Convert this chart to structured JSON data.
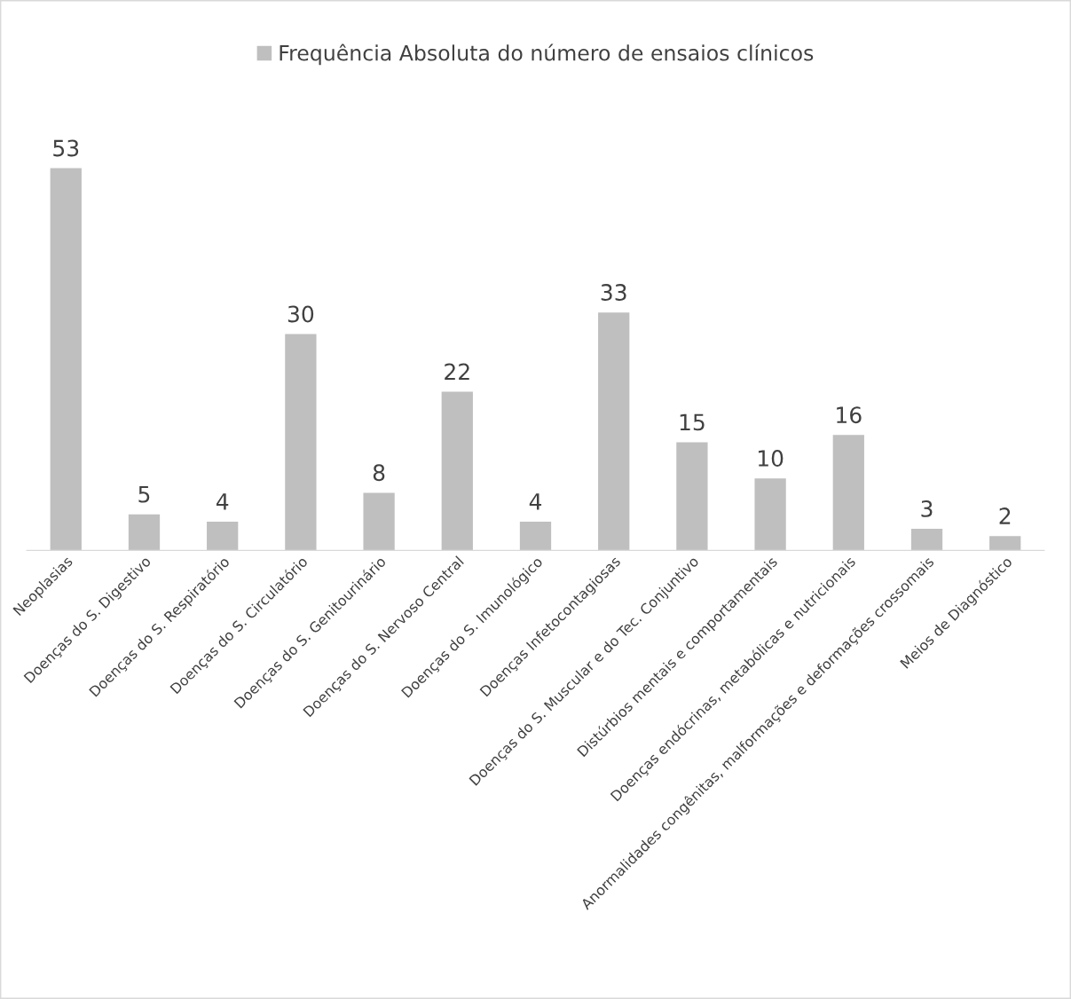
{
  "chart_data": {
    "type": "bar",
    "categories": [
      "Neoplasias",
      "Doenças do S. Digestivo",
      "Doenças do S. Respiratório",
      "Doenças do S. Circulatório",
      "Doenças do S. Genitourinário",
      "Doenças do S. Nervoso Central",
      "Doenças do S. Imunológico",
      "Doenças Infetocontagiosas",
      "Doenças do S. Muscular e do Tec. Conjuntivo",
      "Distúrbios mentais e comportamentais",
      "Doenças endócrinas, metabólicas e nutricionais",
      "Anormalidades congênitas, malformações e deformações crossomais",
      "Meios de Diagnóstico"
    ],
    "series": [
      {
        "name": "Frequência Absoluta do número de ensaios clínicos",
        "color": "#bfbfbf",
        "values": [
          53,
          5,
          4,
          30,
          8,
          22,
          4,
          33,
          15,
          10,
          16,
          3,
          2
        ]
      }
    ],
    "data_labels": true,
    "legend": "top",
    "grid": false,
    "tick_labels": "x"
  }
}
